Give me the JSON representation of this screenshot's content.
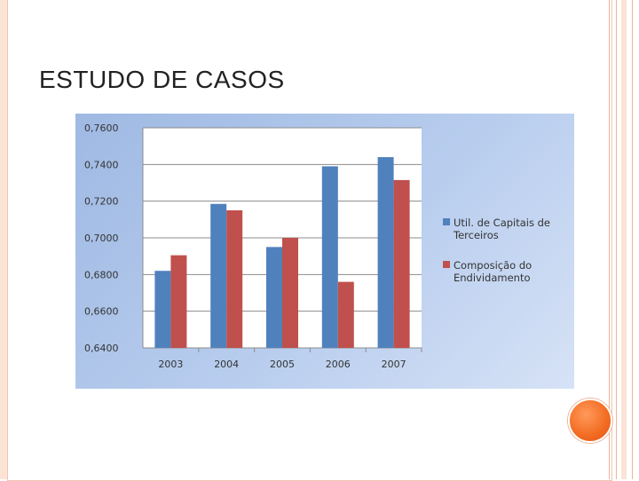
{
  "slide": {
    "title": "ESTUDO DE CASOS"
  },
  "colors": {
    "series_1": "#4f81bd",
    "series_2": "#c0504d",
    "accent_dot": "#f26b21"
  },
  "chart_data": {
    "type": "bar",
    "categories": [
      "2003",
      "2004",
      "2005",
      "2006",
      "2007"
    ],
    "series": [
      {
        "name": "Util. de Capitais de Terceiros",
        "values": [
          0.682,
          0.7185,
          0.695,
          0.739,
          0.744
        ]
      },
      {
        "name": "Composição do Endividamento",
        "values": [
          0.6905,
          0.715,
          0.7,
          0.676,
          0.7315
        ]
      }
    ],
    "ylim": [
      0.64,
      0.76
    ],
    "yticks": [
      "0,7600",
      "0,7400",
      "0,7200",
      "0,7000",
      "0,6800",
      "0,6600",
      "0,6400"
    ],
    "ytick_values": [
      0.76,
      0.74,
      0.72,
      0.7,
      0.68,
      0.66,
      0.64
    ],
    "grid": true,
    "legend_position": "right",
    "legend_lines": [
      [
        "Util. de Capitais de",
        "Terceiros"
      ],
      [
        "Composição do",
        "Endividamento"
      ]
    ]
  }
}
